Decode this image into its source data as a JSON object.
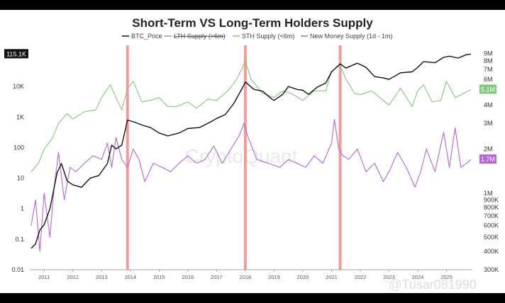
{
  "chart_data": {
    "type": "line",
    "title": "Short-Term VS Long-Term Holders Supply",
    "watermark": "CryptoQuant",
    "overlay_watermark": "@Tusar081990",
    "legend": [
      {
        "name": "BTC_Price",
        "color": "#111111",
        "struck": false
      },
      {
        "name": "LTH Supply (>6m)",
        "color": "#9a9a9a",
        "struck": true
      },
      {
        "name": "STH Supply (<6m)",
        "color": "#7fc97a",
        "struck": false
      },
      {
        "name": "New Money Supply (1d - 1m)",
        "color": "#b565d9",
        "struck": false
      }
    ],
    "x_ticks": [
      "2011",
      "2012",
      "2013",
      "2014",
      "2015",
      "2016",
      "2017",
      "2018",
      "2019",
      "2020",
      "2021",
      "2022",
      "2023",
      "2024",
      "2025"
    ],
    "xlim": [
      2010.5,
      2025.9
    ],
    "left_axis": {
      "scale": "log",
      "ticks": [
        "0.01",
        "0.1",
        "1",
        "10",
        "100",
        "1K",
        "10K"
      ],
      "ylim": [
        0.01,
        200000
      ]
    },
    "right_axis": {
      "scale": "log",
      "ticks": [
        "300K",
        "400K",
        "500K",
        "600K",
        "700K",
        "800K",
        "900K",
        "1M",
        "2M",
        "3M",
        "4M",
        "5M",
        "6M",
        "7M",
        "8M",
        "9M"
      ],
      "ylim": [
        300000,
        10000000
      ]
    },
    "badges": [
      {
        "label": "115.1K",
        "side": "left",
        "color": "#111111"
      },
      {
        "label": "5.1M",
        "side": "right",
        "color": "#7fc97a"
      },
      {
        "label": "1.7M",
        "side": "right",
        "color": "#b565d9"
      }
    ],
    "vertical_markers": [
      2013.9,
      2018.0,
      2021.3
    ],
    "marker_color": "#f08a8a",
    "series": [
      {
        "name": "BTC_Price",
        "axis": "left",
        "color": "#111111",
        "x": [
          2010.55,
          2010.7,
          2010.85,
          2011.0,
          2011.2,
          2011.45,
          2011.6,
          2011.8,
          2012.0,
          2012.3,
          2012.6,
          2012.9,
          2013.2,
          2013.35,
          2013.5,
          2013.7,
          2013.9,
          2014.1,
          2014.4,
          2014.7,
          2015.0,
          2015.3,
          2015.7,
          2016.0,
          2016.4,
          2016.8,
          2017.0,
          2017.3,
          2017.6,
          2017.9,
          2018.0,
          2018.3,
          2018.6,
          2018.9,
          2019.0,
          2019.3,
          2019.5,
          2019.8,
          2020.0,
          2020.2,
          2020.5,
          2020.8,
          2021.0,
          2021.3,
          2021.5,
          2021.9,
          2022.2,
          2022.5,
          2022.8,
          2023.0,
          2023.4,
          2023.8,
          2024.0,
          2024.2,
          2024.6,
          2024.9,
          2025.1,
          2025.4,
          2025.7,
          2025.85
        ],
        "y": [
          0.05,
          0.07,
          0.2,
          0.3,
          1,
          15,
          30,
          8,
          6,
          5,
          10,
          12,
          30,
          120,
          90,
          120,
          800,
          700,
          550,
          450,
          300,
          240,
          300,
          420,
          450,
          700,
          900,
          1200,
          2800,
          9000,
          14000,
          8000,
          7000,
          4000,
          3500,
          5500,
          10000,
          8000,
          7500,
          5500,
          9500,
          13000,
          30000,
          55000,
          40000,
          58000,
          42000,
          21000,
          19000,
          17000,
          28000,
          30000,
          42000,
          65000,
          60000,
          90000,
          98000,
          85000,
          110000,
          115100
        ]
      },
      {
        "name": "STH Supply (<6m)",
        "axis": "right",
        "color": "#7fc97a",
        "x": [
          2010.55,
          2010.8,
          2011.0,
          2011.3,
          2011.5,
          2011.8,
          2012.0,
          2012.4,
          2012.8,
          2013.0,
          2013.3,
          2013.5,
          2013.7,
          2013.9,
          2014.1,
          2014.4,
          2014.7,
          2015.0,
          2015.3,
          2015.6,
          2016.0,
          2016.3,
          2016.7,
          2017.0,
          2017.4,
          2017.7,
          2017.9,
          2018.0,
          2018.2,
          2018.6,
          2019.0,
          2019.3,
          2019.6,
          2020.0,
          2020.4,
          2020.8,
          2021.0,
          2021.3,
          2021.5,
          2021.8,
          2022.0,
          2022.4,
          2022.8,
          2023.0,
          2023.4,
          2023.8,
          2024.0,
          2024.2,
          2024.5,
          2024.8,
          2025.0,
          2025.3,
          2025.6,
          2025.85
        ],
        "y": [
          1400000,
          1600000,
          2000000,
          2400000,
          3000000,
          3500000,
          3200000,
          3600000,
          3700000,
          4500000,
          5500000,
          4500000,
          3700000,
          5200000,
          5800000,
          4200000,
          4300000,
          4500000,
          3900000,
          3900000,
          4200000,
          3800000,
          4400000,
          4300000,
          5000000,
          6000000,
          7200000,
          8000000,
          6000000,
          4800000,
          4500000,
          5000000,
          4800000,
          4300000,
          5000000,
          5000000,
          6800000,
          7500000,
          6000000,
          4800000,
          4700000,
          5000000,
          4300000,
          4000000,
          5200000,
          3900000,
          5000000,
          5500000,
          4200000,
          4300000,
          5800000,
          4500000,
          4800000,
          5100000
        ]
      },
      {
        "name": "New Money Supply (1d - 1m)",
        "axis": "right",
        "color": "#b565d9",
        "x": [
          2010.55,
          2010.7,
          2010.85,
          2011.0,
          2011.2,
          2011.35,
          2011.5,
          2011.7,
          2011.9,
          2012.1,
          2012.4,
          2012.7,
          2013.0,
          2013.2,
          2013.35,
          2013.5,
          2013.7,
          2013.9,
          2014.1,
          2014.3,
          2014.5,
          2014.8,
          2015.1,
          2015.4,
          2015.7,
          2016.0,
          2016.3,
          2016.6,
          2016.9,
          2017.2,
          2017.5,
          2017.8,
          2017.95,
          2018.1,
          2018.4,
          2018.8,
          2019.2,
          2019.5,
          2019.8,
          2020.1,
          2020.4,
          2020.7,
          2021.0,
          2021.1,
          2021.25,
          2021.4,
          2021.6,
          2021.9,
          2022.2,
          2022.5,
          2022.8,
          2023.0,
          2023.3,
          2023.6,
          2023.9,
          2024.1,
          2024.3,
          2024.6,
          2024.9,
          2025.1,
          2025.3,
          2025.5,
          2025.7,
          2025.85
        ],
        "y": [
          600000,
          900000,
          400000,
          1000000,
          500000,
          1100000,
          1900000,
          900000,
          1500000,
          1400000,
          1600000,
          1800000,
          1700000,
          2200000,
          1500000,
          2400000,
          1700000,
          1500000,
          2000000,
          1700000,
          1200000,
          1600000,
          1500000,
          1400000,
          1600000,
          1800000,
          1600000,
          1700000,
          2100000,
          1600000,
          2000000,
          2500000,
          3000000,
          2400000,
          1700000,
          1600000,
          1500000,
          1700000,
          1600000,
          1500000,
          1800000,
          1600000,
          2200000,
          3200000,
          2000000,
          1800000,
          1700000,
          2000000,
          1400000,
          1600000,
          1200000,
          1400000,
          1900000,
          1500000,
          1100000,
          1400000,
          2000000,
          1400000,
          2600000,
          1500000,
          2800000,
          1500000,
          1600000,
          1700000
        ]
      }
    ]
  }
}
